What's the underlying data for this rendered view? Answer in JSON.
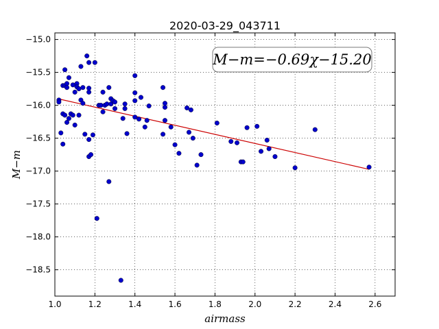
{
  "chart_data": {
    "type": "scatter",
    "title": "2020-03-29_043711",
    "xlabel": "airmass",
    "ylabel": "M−m",
    "xlim": [
      1.0,
      2.7
    ],
    "ylim": [
      -18.9,
      -14.9
    ],
    "y_inverted": true,
    "grid": true,
    "x_ticks": [
      1.0,
      1.2,
      1.4,
      1.6,
      1.8,
      2.0,
      2.2,
      2.4,
      2.6
    ],
    "x_tick_labels": [
      "1.0",
      "1.2",
      "1.4",
      "1.6",
      "1.8",
      "2.0",
      "2.2",
      "2.4",
      "2.6"
    ],
    "y_ticks": [
      -15.0,
      -15.5,
      -16.0,
      -16.5,
      -17.0,
      -17.5,
      -18.0,
      -18.5
    ],
    "y_tick_labels": [
      "−15.0",
      "−15.5",
      "−16.0",
      "−16.5",
      "−17.0",
      "−17.5",
      "−18.0",
      "−18.5"
    ],
    "annotation": "M−m=−0.69χ−15.20",
    "annotation_position": "top-right",
    "marker_color": "#0000cc",
    "fit_color": "#cc0000",
    "series": [
      {
        "values": [
          [
            1.02,
            -15.92
          ],
          [
            1.02,
            -15.95
          ],
          [
            1.03,
            -16.42
          ],
          [
            1.04,
            -15.7
          ],
          [
            1.04,
            -16.13
          ],
          [
            1.04,
            -16.59
          ],
          [
            1.05,
            -15.46
          ],
          [
            1.05,
            -15.7
          ],
          [
            1.05,
            -16.15
          ],
          [
            1.06,
            -15.67
          ],
          [
            1.06,
            -15.73
          ],
          [
            1.06,
            -16.26
          ],
          [
            1.07,
            -15.58
          ],
          [
            1.07,
            -16.2
          ],
          [
            1.08,
            -16.13
          ],
          [
            1.09,
            -15.69
          ],
          [
            1.09,
            -16.15
          ],
          [
            1.1,
            -15.8
          ],
          [
            1.1,
            -16.3
          ],
          [
            1.11,
            -15.67
          ],
          [
            1.11,
            -15.72
          ],
          [
            1.12,
            -15.75
          ],
          [
            1.12,
            -16.15
          ],
          [
            1.13,
            -15.41
          ],
          [
            1.13,
            -15.92
          ],
          [
            1.14,
            -15.97
          ],
          [
            1.14,
            -15.73
          ],
          [
            1.15,
            -16.44
          ],
          [
            1.16,
            -15.25
          ],
          [
            1.17,
            -15.35
          ],
          [
            1.17,
            -15.74
          ],
          [
            1.17,
            -15.8
          ],
          [
            1.17,
            -16.52
          ],
          [
            1.17,
            -16.78
          ],
          [
            1.18,
            -16.75
          ],
          [
            1.19,
            -16.45
          ],
          [
            1.2,
            -15.35
          ],
          [
            1.21,
            -17.72
          ],
          [
            1.22,
            -16.0
          ],
          [
            1.23,
            -16.0
          ],
          [
            1.24,
            -15.8
          ],
          [
            1.24,
            -16.1
          ],
          [
            1.25,
            -16.0
          ],
          [
            1.26,
            -15.98
          ],
          [
            1.27,
            -15.73
          ],
          [
            1.27,
            -17.16
          ],
          [
            1.28,
            -15.98
          ],
          [
            1.28,
            -15.9
          ],
          [
            1.29,
            -15.93
          ],
          [
            1.3,
            -16.05
          ],
          [
            1.3,
            -15.95
          ],
          [
            1.33,
            -18.66
          ],
          [
            1.34,
            -16.2
          ],
          [
            1.35,
            -16.05
          ],
          [
            1.35,
            -15.98
          ],
          [
            1.36,
            -16.43
          ],
          [
            1.4,
            -15.81
          ],
          [
            1.4,
            -15.55
          ],
          [
            1.4,
            -15.93
          ],
          [
            1.4,
            -16.18
          ],
          [
            1.42,
            -16.21
          ],
          [
            1.43,
            -15.88
          ],
          [
            1.45,
            -16.33
          ],
          [
            1.46,
            -16.23
          ],
          [
            1.47,
            -16.01
          ],
          [
            1.54,
            -16.44
          ],
          [
            1.54,
            -15.73
          ],
          [
            1.55,
            -16.23
          ],
          [
            1.55,
            -16.03
          ],
          [
            1.55,
            -15.97
          ],
          [
            1.58,
            -16.33
          ],
          [
            1.6,
            -16.6
          ],
          [
            1.62,
            -16.73
          ],
          [
            1.66,
            -16.04
          ],
          [
            1.67,
            -16.41
          ],
          [
            1.68,
            -16.07
          ],
          [
            1.69,
            -16.5
          ],
          [
            1.71,
            -16.91
          ],
          [
            1.73,
            -16.75
          ],
          [
            1.81,
            -16.27
          ],
          [
            1.88,
            -16.55
          ],
          [
            1.91,
            -16.57
          ],
          [
            1.93,
            -16.86
          ],
          [
            1.94,
            -16.86
          ],
          [
            1.96,
            -16.34
          ],
          [
            2.01,
            -16.32
          ],
          [
            2.03,
            -16.7
          ],
          [
            2.06,
            -16.53
          ],
          [
            2.07,
            -16.66
          ],
          [
            2.1,
            -16.78
          ],
          [
            2.2,
            -16.95
          ],
          [
            2.3,
            -16.37
          ],
          [
            2.57,
            -16.94
          ]
        ]
      }
    ],
    "fit_line": {
      "slope": -0.69,
      "intercept": -15.2,
      "x_start": 1.02,
      "x_end": 2.57
    }
  }
}
